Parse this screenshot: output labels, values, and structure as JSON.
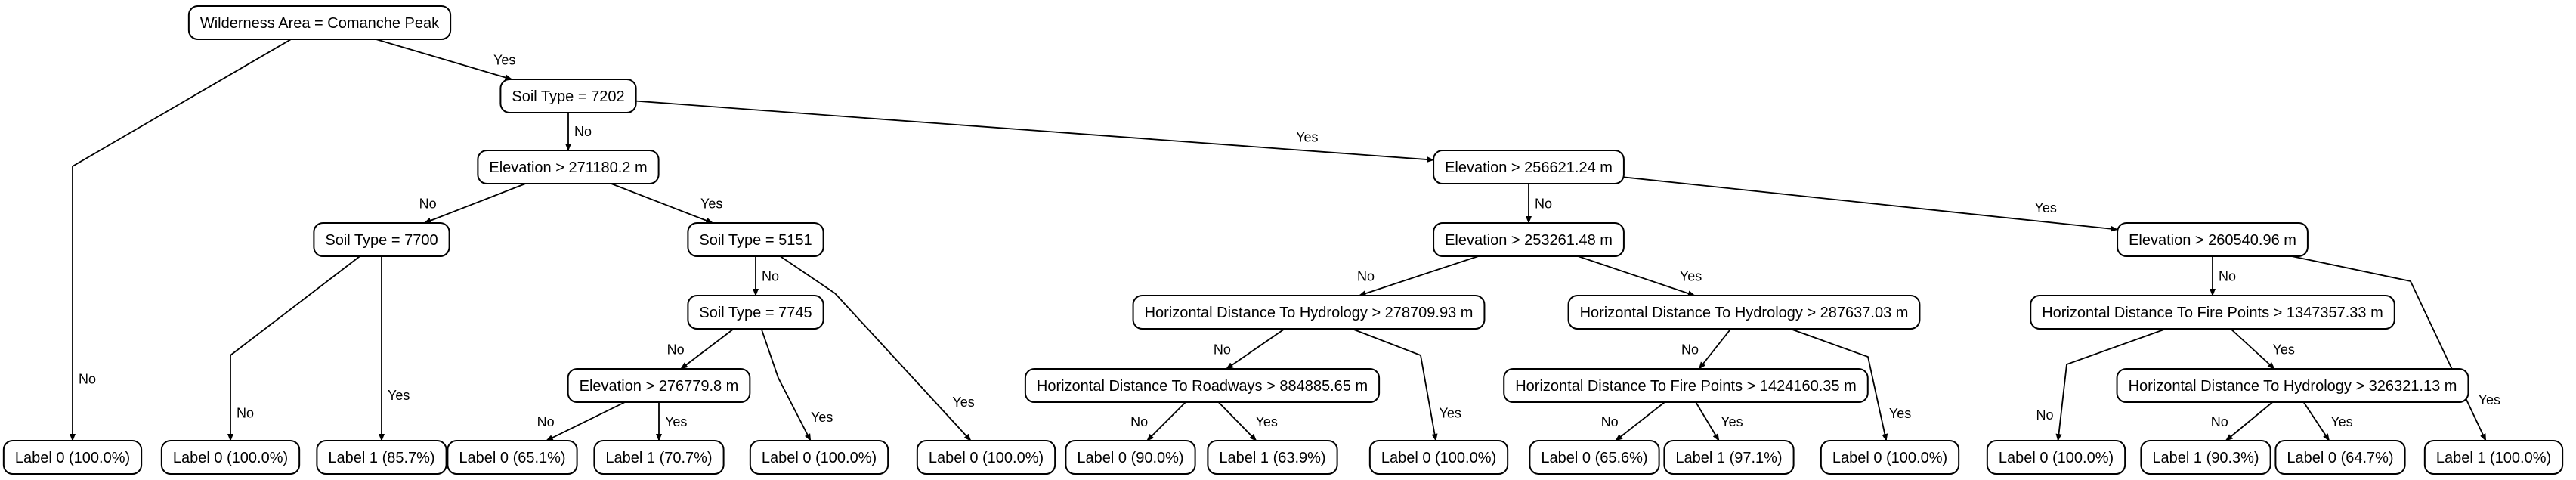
{
  "nodes": [
    {
      "id": "n0",
      "text": "Wilderness Area = Comanche Peak"
    },
    {
      "id": "n1",
      "text": "Soil Type = 7202"
    },
    {
      "id": "n2",
      "text": "Elevation > 271180.2 m"
    },
    {
      "id": "n3",
      "text": "Soil Type = 7700"
    },
    {
      "id": "n4",
      "text": "Soil Type = 5151"
    },
    {
      "id": "n5",
      "text": "Soil Type = 7745"
    },
    {
      "id": "n6",
      "text": "Elevation > 276779.8 m"
    },
    {
      "id": "n7",
      "text": "Elevation > 256621.24 m"
    },
    {
      "id": "n8",
      "text": "Elevation > 253261.48 m"
    },
    {
      "id": "n9",
      "text": "Horizontal Distance To Hydrology > 278709.93 m"
    },
    {
      "id": "n10",
      "text": "Horizontal Distance To Roadways > 884885.65 m"
    },
    {
      "id": "n11",
      "text": "Horizontal Distance To Hydrology > 287637.03 m"
    },
    {
      "id": "n12",
      "text": "Horizontal Distance To Fire Points > 1424160.35 m"
    },
    {
      "id": "n13",
      "text": "Elevation > 260540.96 m"
    },
    {
      "id": "n14",
      "text": "Horizontal Distance To Fire Points > 1347357.33 m"
    },
    {
      "id": "n15",
      "text": "Horizontal Distance To Hydrology > 326321.13 m"
    },
    {
      "id": "l0",
      "text": "Label 0 (100.0%)"
    },
    {
      "id": "l1",
      "text": "Label 0 (100.0%)"
    },
    {
      "id": "l2",
      "text": "Label 1 (85.7%)"
    },
    {
      "id": "l3",
      "text": "Label 0 (65.1%)"
    },
    {
      "id": "l4",
      "text": "Label 1 (70.7%)"
    },
    {
      "id": "l5",
      "text": "Label 0 (100.0%)"
    },
    {
      "id": "l6",
      "text": "Label 0 (100.0%)"
    },
    {
      "id": "l7",
      "text": "Label 0 (90.0%)"
    },
    {
      "id": "l8",
      "text": "Label 1 (63.9%)"
    },
    {
      "id": "l9",
      "text": "Label 0 (100.0%)"
    },
    {
      "id": "l10",
      "text": "Label 0 (65.6%)"
    },
    {
      "id": "l11",
      "text": "Label 1 (97.1%)"
    },
    {
      "id": "l12",
      "text": "Label 0 (100.0%)"
    },
    {
      "id": "l13",
      "text": "Label 0 (100.0%)"
    },
    {
      "id": "l14",
      "text": "Label 1 (90.3%)"
    },
    {
      "id": "l15",
      "text": "Label 0 (64.7%)"
    },
    {
      "id": "l16",
      "text": "Label 1 (100.0%)"
    }
  ],
  "edges": [
    {
      "from": "n0",
      "to": "l0",
      "label": "No"
    },
    {
      "from": "n0",
      "to": "n1",
      "label": "Yes"
    },
    {
      "from": "n1",
      "to": "n2",
      "label": "No"
    },
    {
      "from": "n1",
      "to": "n7",
      "label": "Yes"
    },
    {
      "from": "n2",
      "to": "n3",
      "label": "No"
    },
    {
      "from": "n2",
      "to": "n4",
      "label": "Yes"
    },
    {
      "from": "n3",
      "to": "l1",
      "label": "No"
    },
    {
      "from": "n3",
      "to": "l2",
      "label": "Yes"
    },
    {
      "from": "n4",
      "to": "n5",
      "label": "No"
    },
    {
      "from": "n4",
      "to": "l6",
      "label": "Yes"
    },
    {
      "from": "n5",
      "to": "n6",
      "label": "No"
    },
    {
      "from": "n5",
      "to": "l5",
      "label": "Yes"
    },
    {
      "from": "n6",
      "to": "l3",
      "label": "No"
    },
    {
      "from": "n6",
      "to": "l4",
      "label": "Yes"
    },
    {
      "from": "n7",
      "to": "n8",
      "label": "No"
    },
    {
      "from": "n7",
      "to": "n13",
      "label": "Yes"
    },
    {
      "from": "n8",
      "to": "n9",
      "label": "No"
    },
    {
      "from": "n8",
      "to": "n11",
      "label": "Yes"
    },
    {
      "from": "n9",
      "to": "n10",
      "label": "No"
    },
    {
      "from": "n9",
      "to": "l9",
      "label": "Yes"
    },
    {
      "from": "n10",
      "to": "l7",
      "label": "No"
    },
    {
      "from": "n10",
      "to": "l8",
      "label": "Yes"
    },
    {
      "from": "n11",
      "to": "n12",
      "label": "No"
    },
    {
      "from": "n11",
      "to": "l12",
      "label": "Yes"
    },
    {
      "from": "n12",
      "to": "l10",
      "label": "No"
    },
    {
      "from": "n12",
      "to": "l11",
      "label": "Yes"
    },
    {
      "from": "n13",
      "to": "n14",
      "label": "No"
    },
    {
      "from": "n13",
      "to": "l16",
      "label": "Yes"
    },
    {
      "from": "n14",
      "to": "l13",
      "label": "No"
    },
    {
      "from": "n14",
      "to": "n15",
      "label": "Yes"
    },
    {
      "from": "n15",
      "to": "l14",
      "label": "No"
    },
    {
      "from": "n15",
      "to": "l15",
      "label": "Yes"
    }
  ]
}
